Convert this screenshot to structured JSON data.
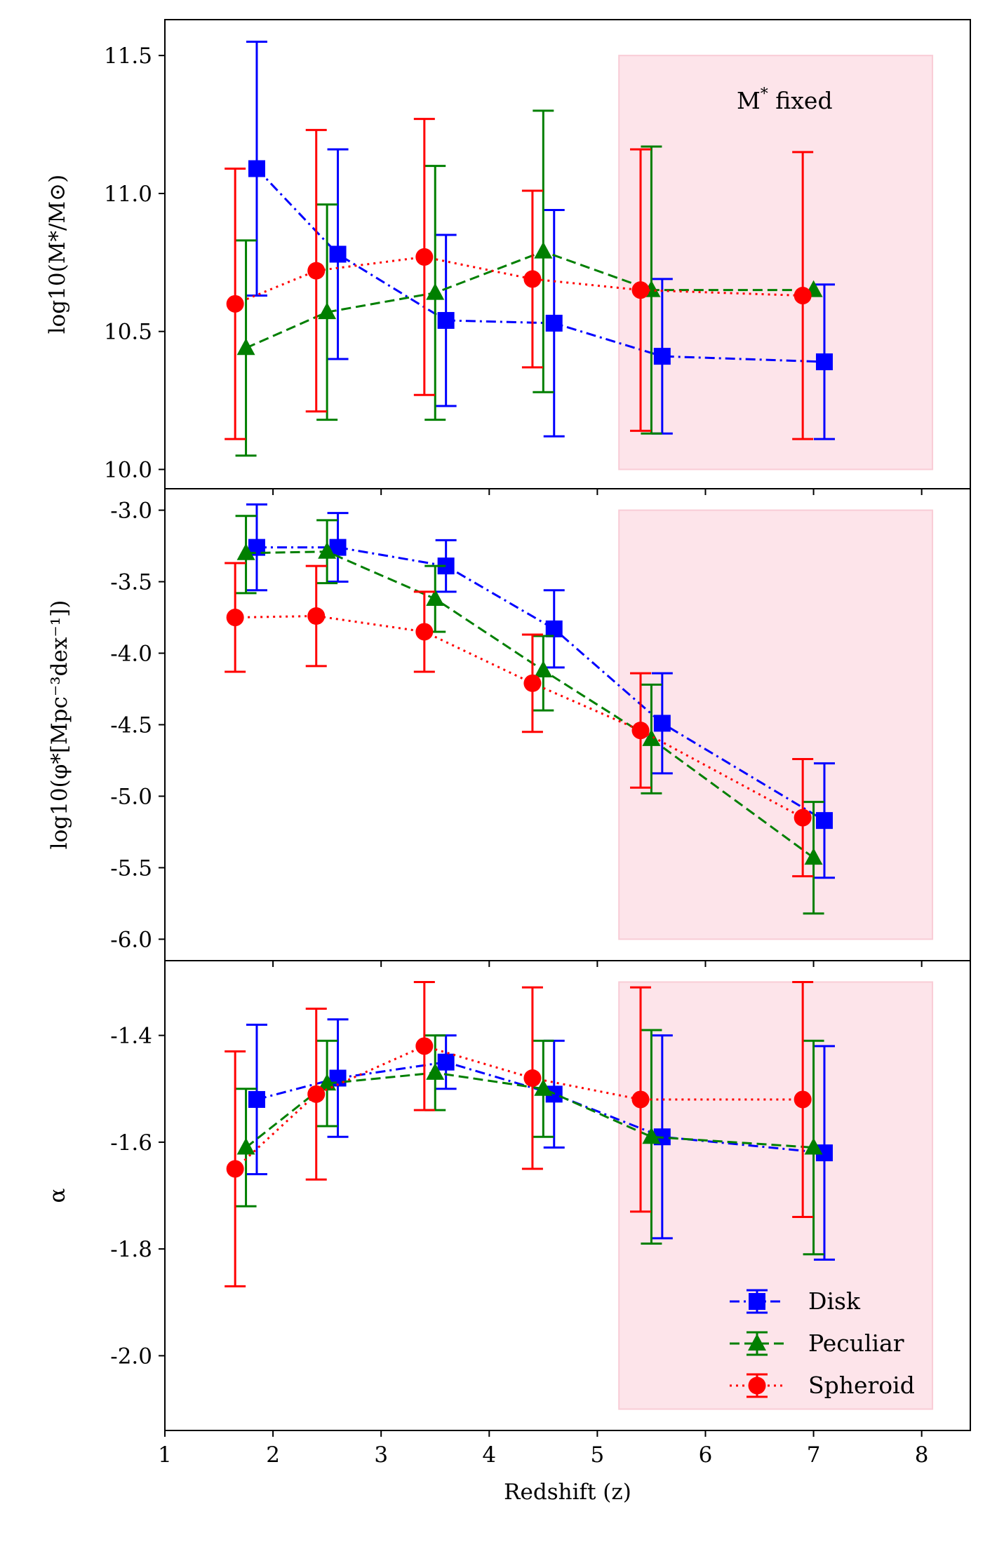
{
  "chart_data": {
    "type": "scatter",
    "xlabel": "Redshift (z)",
    "xlim": [
      1,
      8.45
    ],
    "x_ticks": [
      "1",
      "2",
      "3",
      "4",
      "5",
      "6",
      "7",
      "8"
    ],
    "shaded_region": {
      "x": [
        5.2,
        8.1
      ],
      "color": "#fde4ea",
      "edge": "#f9ccd6"
    },
    "annotation": {
      "text": "M",
      "sup": "*",
      "suffix": " fixed"
    },
    "legend": {
      "position": "bottom-right",
      "entries": [
        {
          "label": "Disk",
          "color": "#0000ff",
          "marker": "square",
          "dash": "dashdot"
        },
        {
          "label": "Peculiar",
          "color": "#007f00",
          "marker": "triangle",
          "dash": "dashed"
        },
        {
          "label": "Spheroid",
          "color": "#ff0000",
          "marker": "circle",
          "dash": "dotted"
        }
      ]
    },
    "panels": [
      {
        "id": "mstar",
        "ylabel": "log10(M*/M⊙)",
        "ylim": [
          9.93,
          11.63
        ],
        "yticks": [
          10.0,
          10.5,
          11.0,
          11.5
        ],
        "ytick_labels": [
          "10.0",
          "10.5",
          "11.0",
          "11.5"
        ],
        "shade_y": [
          10.0,
          11.5
        ],
        "series": [
          {
            "name": "Disk",
            "x": [
              1.85,
              2.6,
              3.6,
              4.6,
              5.6,
              7.1
            ],
            "y": [
              11.09,
              10.78,
              10.54,
              10.53,
              10.41,
              10.39
            ],
            "lo": [
              10.63,
              10.4,
              10.23,
              10.12,
              10.13,
              10.11
            ],
            "hi": [
              11.55,
              11.16,
              10.85,
              10.94,
              10.69,
              10.67
            ]
          },
          {
            "name": "Peculiar",
            "x": [
              1.75,
              2.5,
              3.5,
              4.5,
              5.5,
              7.0
            ],
            "y": [
              10.44,
              10.57,
              10.64,
              10.79,
              10.65,
              10.65
            ],
            "lo": [
              10.05,
              10.18,
              10.18,
              10.28,
              10.13,
              null
            ],
            "hi": [
              10.83,
              10.96,
              11.1,
              11.3,
              11.17,
              null
            ]
          },
          {
            "name": "Spheroid",
            "x": [
              1.65,
              2.4,
              3.4,
              4.4,
              5.4,
              6.9
            ],
            "y": [
              10.6,
              10.72,
              10.77,
              10.69,
              10.65,
              10.63
            ],
            "lo": [
              10.11,
              10.21,
              10.27,
              10.37,
              10.14,
              10.11
            ],
            "hi": [
              11.09,
              11.23,
              11.27,
              11.01,
              11.16,
              11.15
            ]
          }
        ]
      },
      {
        "id": "phistar",
        "ylabel": "log10(φ*[Mpc⁻³dex⁻¹])",
        "ylim": [
          -6.15,
          -2.85
        ],
        "yticks": [
          -3.0,
          -3.5,
          -4.0,
          -4.5,
          -5.0,
          -5.5,
          -6.0
        ],
        "ytick_labels": [
          "-3.0",
          "-3.5",
          "-4.0",
          "-4.5",
          "-5.0",
          "-5.5",
          "-6.0"
        ],
        "shade_y": [
          -6.0,
          -3.0
        ],
        "series": [
          {
            "name": "Disk",
            "x": [
              1.85,
              2.6,
              3.6,
              4.6,
              5.6,
              7.1
            ],
            "y": [
              -3.26,
              -3.26,
              -3.39,
              -3.83,
              -4.49,
              -5.17
            ],
            "lo": [
              -3.56,
              -3.5,
              -3.57,
              -4.1,
              -4.84,
              -5.57
            ],
            "hi": [
              -2.96,
              -3.02,
              -3.21,
              -3.56,
              -4.14,
              -4.77
            ]
          },
          {
            "name": "Peculiar",
            "x": [
              1.75,
              2.5,
              3.5,
              4.5,
              5.5,
              7.0
            ],
            "y": [
              -3.3,
              -3.29,
              -3.62,
              -4.12,
              -4.6,
              -5.43
            ],
            "lo": [
              -3.58,
              -3.51,
              -3.85,
              -4.4,
              -4.98,
              -5.82
            ],
            "hi": [
              -3.04,
              -3.07,
              -3.39,
              -3.88,
              -4.22,
              -5.04
            ]
          },
          {
            "name": "Spheroid",
            "x": [
              1.65,
              2.4,
              3.4,
              4.4,
              5.4,
              6.9
            ],
            "y": [
              -3.75,
              -3.74,
              -3.85,
              -4.21,
              -4.54,
              -5.15
            ],
            "lo": [
              -4.13,
              -4.09,
              -4.13,
              -4.55,
              -4.94,
              -5.56
            ],
            "hi": [
              -3.37,
              -3.39,
              -3.57,
              -3.87,
              -4.14,
              -4.74
            ]
          }
        ]
      },
      {
        "id": "alpha",
        "ylabel": "α",
        "ylim": [
          -2.14,
          -1.26
        ],
        "yticks": [
          -1.4,
          -1.6,
          -1.8,
          -2.0
        ],
        "ytick_labels": [
          "-1.4",
          "-1.6",
          "-1.8",
          "-2.0"
        ],
        "shade_y": [
          -2.1,
          -1.3
        ],
        "series": [
          {
            "name": "Disk",
            "x": [
              1.85,
              2.6,
              3.6,
              4.6,
              5.6,
              7.1
            ],
            "y": [
              -1.52,
              -1.48,
              -1.45,
              -1.51,
              -1.59,
              -1.62
            ],
            "lo": [
              -1.66,
              -1.59,
              -1.5,
              -1.61,
              -1.78,
              -1.82
            ],
            "hi": [
              -1.38,
              -1.37,
              -1.4,
              -1.41,
              -1.4,
              -1.42
            ]
          },
          {
            "name": "Peculiar",
            "x": [
              1.75,
              2.5,
              3.5,
              4.5,
              5.5,
              7.0
            ],
            "y": [
              -1.61,
              -1.49,
              -1.47,
              -1.5,
              -1.59,
              -1.61
            ],
            "lo": [
              -1.72,
              -1.57,
              -1.54,
              -1.59,
              -1.79,
              -1.81
            ],
            "hi": [
              -1.5,
              -1.41,
              -1.4,
              -1.41,
              -1.39,
              -1.41
            ]
          },
          {
            "name": "Spheroid",
            "x": [
              1.65,
              2.4,
              3.4,
              4.4,
              5.4,
              6.9
            ],
            "y": [
              -1.65,
              -1.51,
              -1.42,
              -1.48,
              -1.52,
              -1.52
            ],
            "lo": [
              -1.87,
              -1.67,
              -1.54,
              -1.65,
              -1.73,
              -1.74
            ],
            "hi": [
              -1.43,
              -1.35,
              -1.3,
              -1.31,
              -1.31,
              -1.3
            ]
          }
        ]
      }
    ]
  }
}
